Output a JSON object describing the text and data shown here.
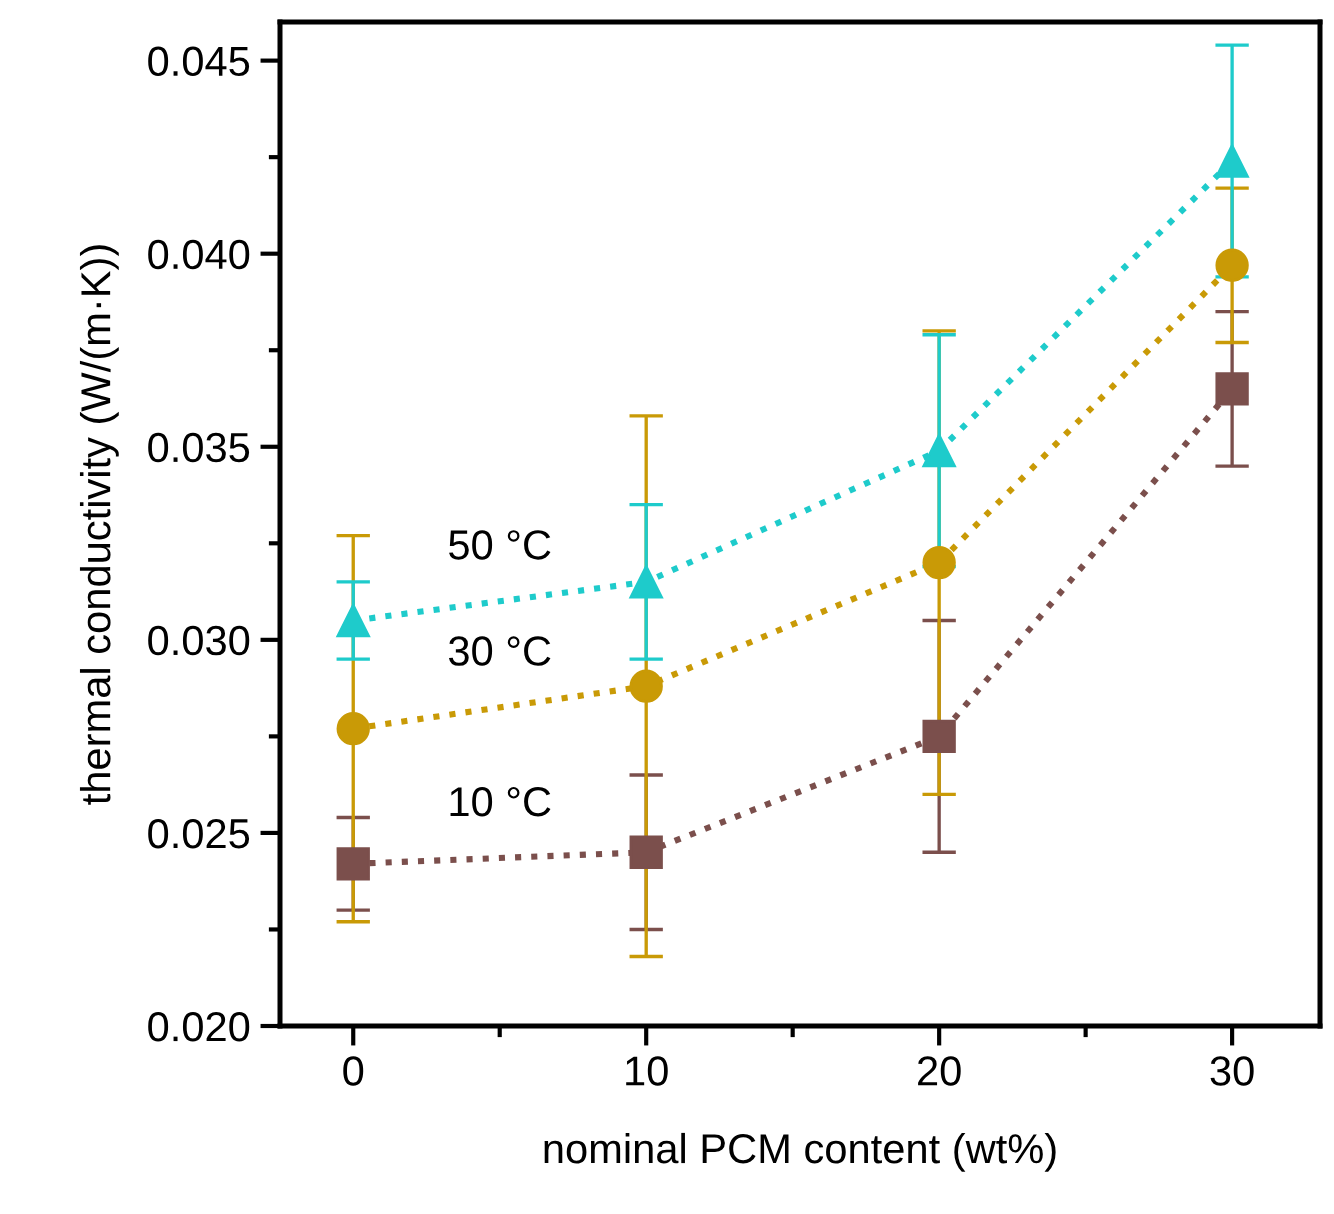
{
  "chart_data": {
    "type": "line",
    "xlabel": "nominal PCM content (wt%)",
    "ylabel": "thermal conductivity (W/(m·K))",
    "x": [
      0,
      10,
      20,
      30
    ],
    "xlim": [
      -2.5,
      33
    ],
    "xticks": [
      0,
      10,
      20,
      30
    ],
    "ylim": [
      0.02,
      0.046
    ],
    "yticks": [
      {
        "value": 0.02,
        "label": "0.020"
      },
      {
        "value": 0.025,
        "label": "0.025"
      },
      {
        "value": 0.03,
        "label": "0.030"
      },
      {
        "value": 0.035,
        "label": "0.035"
      },
      {
        "value": 0.04,
        "label": "0.040"
      },
      {
        "value": 0.045,
        "label": "0.045"
      }
    ],
    "grid": false,
    "legend": false,
    "line_style": "dotted",
    "series": [
      {
        "name": "10 °C",
        "color": "#7b4f4c",
        "marker": "square",
        "values": [
          0.0242,
          0.0245,
          0.0275,
          0.0365
        ],
        "errors": [
          0.0012,
          0.002,
          0.003,
          0.002
        ]
      },
      {
        "name": "30 °C",
        "color": "#c99a06",
        "marker": "circle",
        "values": [
          0.0277,
          0.0288,
          0.032,
          0.0397
        ],
        "errors": [
          0.005,
          0.007,
          0.006,
          0.002
        ]
      },
      {
        "name": "50 °C",
        "color": "#1ecbcb",
        "marker": "triangle",
        "values": [
          0.0305,
          0.0315,
          0.0349,
          0.0424
        ],
        "errors": [
          0.001,
          0.002,
          0.003,
          0.003
        ]
      }
    ]
  }
}
